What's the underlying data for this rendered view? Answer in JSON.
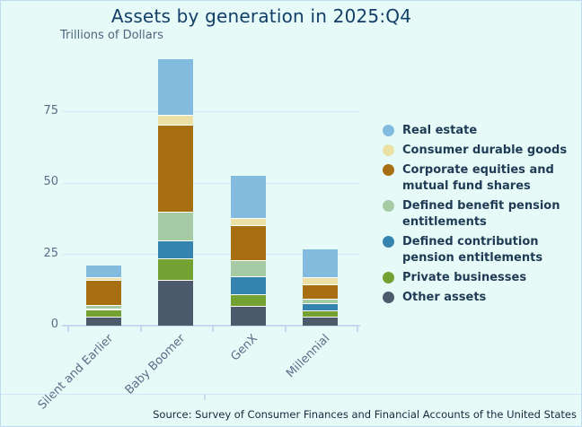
{
  "title": "Assets by generation in 2025:Q4",
  "subtitle": "Trillions of Dollars",
  "source_note": "Source: Survey of Consumer Finances and Financial Accounts of the United States",
  "colors": {
    "background": "#E6FBF8",
    "border": "#BFDCEF",
    "title_text": "#123E68",
    "subtitle_text": "#4B657F",
    "axis_text": "#5A6C88",
    "axis_line": "#C3DAEF",
    "gridline": "#D5E4F6",
    "legend_text": "#1E3A54",
    "source_text": "#14293D",
    "segment_divider": "#FFFFFF"
  },
  "chart_data": {
    "type": "bar",
    "stacked": true,
    "grid": true,
    "legend_position": "right",
    "xlabel": "",
    "ylabel": "Trillions of Dollars",
    "yticks": [
      0,
      25,
      50,
      75
    ],
    "ylim": [
      0,
      96
    ],
    "categories": [
      "Silent and Earlier",
      "Baby Boomer",
      "GenX",
      "Millennial"
    ],
    "series": [
      {
        "name": "Other assets",
        "color": "#4C5A6B",
        "values": [
          3.3,
          16.0,
          6.8,
          3.1
        ]
      },
      {
        "name": "Private businesses",
        "color": "#73A233",
        "values": [
          2.4,
          7.5,
          4.2,
          2.4
        ]
      },
      {
        "name": "Defined contribution pension entitlements",
        "legend_lines": [
          "Defined contribution",
          "pension entitlements"
        ],
        "color": "#3584AF",
        "values": [
          0.3,
          6.5,
          6.2,
          2.4
        ]
      },
      {
        "name": "Defined benefit pension entitlements",
        "legend_lines": [
          "Defined benefit pension",
          "entitlements"
        ],
        "color": "#A6CAA4",
        "values": [
          1.3,
          10.0,
          5.7,
          1.7
        ]
      },
      {
        "name": "Corporate equities and mutual fund shares",
        "legend_lines": [
          "Corporate equities and",
          "mutual fund shares"
        ],
        "color": "#A86F12",
        "values": [
          8.8,
          30.5,
          12.4,
          5.0
        ]
      },
      {
        "name": "Consumer durable goods",
        "color": "#EBE1A7",
        "values": [
          0.9,
          3.5,
          2.4,
          2.5
        ]
      },
      {
        "name": "Real estate",
        "color": "#83BBDF",
        "values": [
          4.0,
          19.5,
          14.8,
          9.7
        ]
      }
    ],
    "legend_display_order_top_to_bottom": [
      "Real estate",
      "Consumer durable goods",
      "Corporate equities and mutual fund shares",
      "Defined benefit pension entitlements",
      "Defined contribution pension entitlements",
      "Private businesses",
      "Other assets"
    ]
  }
}
